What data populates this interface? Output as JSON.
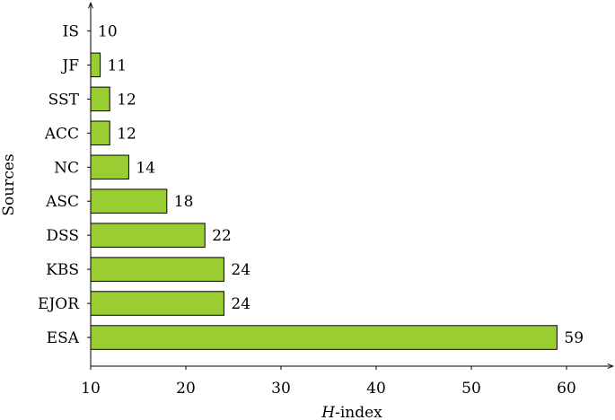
{
  "chart_data": {
    "type": "bar",
    "orientation": "horizontal",
    "categories": [
      "ESA",
      "EJOR",
      "KBS",
      "DSS",
      "ASC",
      "NC",
      "ACC",
      "SST",
      "JF",
      "IS"
    ],
    "values": [
      59,
      24,
      24,
      22,
      18,
      14,
      12,
      12,
      11,
      10
    ],
    "xlabel_prefix": "H",
    "xlabel_suffix": "-index",
    "ylabel": "Sources",
    "xlim": [
      10,
      65
    ],
    "xticks": [
      10,
      20,
      30,
      40,
      50,
      60
    ],
    "bar_color": "#9acd32",
    "bar_edge_color": "#000000",
    "grid": false,
    "legend": "none"
  }
}
